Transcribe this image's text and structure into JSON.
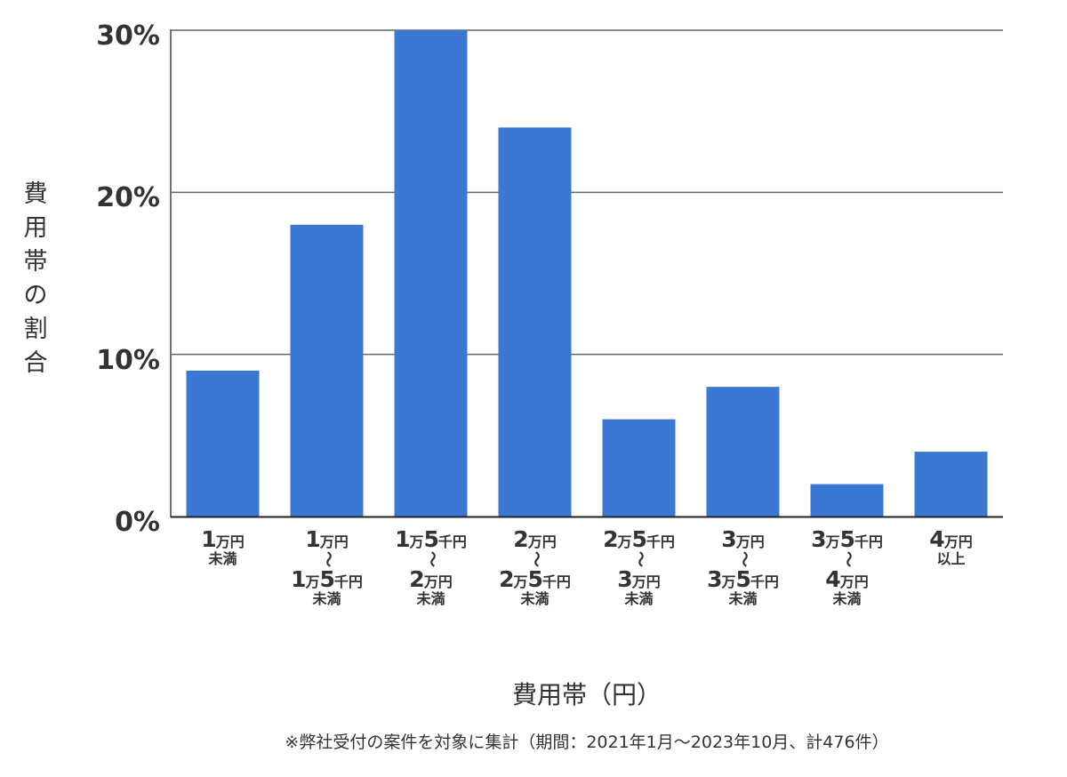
{
  "chart_data": {
    "type": "bar",
    "title": "",
    "xlabel": "費用帯（円）",
    "ylabel": "費用帯の割合",
    "ylim": [
      0,
      30
    ],
    "yticks": [
      "0%",
      "10%",
      "20%",
      "30%"
    ],
    "grid": true,
    "bar_color": "#3B78D4",
    "categories": [
      "1万円未満",
      "1万円〜1万5千円未満",
      "1万5千円〜2万円未満",
      "2万円〜2万5千円未満",
      "2万5千円〜3万円未満",
      "3万円〜3万5千円未満",
      "3万5千円〜4万円未満",
      "4万円以上"
    ],
    "values": [
      9,
      18,
      30,
      24,
      6,
      8,
      2,
      4
    ],
    "unit": "%",
    "note": "※弊社受付の案件を対象に集計（期間：2021年1月〜2023年10月、計476件）"
  },
  "axis": {
    "y_title_chars": [
      "費",
      "用",
      "帯",
      "の",
      "割",
      "合"
    ],
    "y_ticks": {
      "t0": "0%",
      "t10": "10%",
      "t20": "20%",
      "t30": "30%"
    },
    "x_title": "費用帯（円）"
  },
  "categories_display": [
    {
      "top": [
        "1",
        "万円"
      ],
      "mid": "",
      "bottom": [],
      "sub": "未満"
    },
    {
      "top": [
        "1",
        "万円"
      ],
      "mid": "〜",
      "bottom": [
        "1",
        "万",
        "5",
        "千円"
      ],
      "sub": "未満"
    },
    {
      "top": [
        "1",
        "万",
        "5",
        "千円"
      ],
      "mid": "〜",
      "bottom": [
        "2",
        "万円"
      ],
      "sub": "未満"
    },
    {
      "top": [
        "2",
        "万円"
      ],
      "mid": "〜",
      "bottom": [
        "2",
        "万",
        "5",
        "千円"
      ],
      "sub": "未満"
    },
    {
      "top": [
        "2",
        "万",
        "5",
        "千円"
      ],
      "mid": "〜",
      "bottom": [
        "3",
        "万円"
      ],
      "sub": "未満"
    },
    {
      "top": [
        "3",
        "万円"
      ],
      "mid": "〜",
      "bottom": [
        "3",
        "万",
        "5",
        "千円"
      ],
      "sub": "未満"
    },
    {
      "top": [
        "3",
        "万",
        "5",
        "千円"
      ],
      "mid": "〜",
      "bottom": [
        "4",
        "万円"
      ],
      "sub": "未満"
    },
    {
      "top": [
        "4",
        "万円"
      ],
      "mid": "",
      "bottom": [],
      "sub": "以上"
    }
  ],
  "footnote": "※弊社受付の案件を対象に集計（期間：2021年1月〜2023年10月、計476件）"
}
